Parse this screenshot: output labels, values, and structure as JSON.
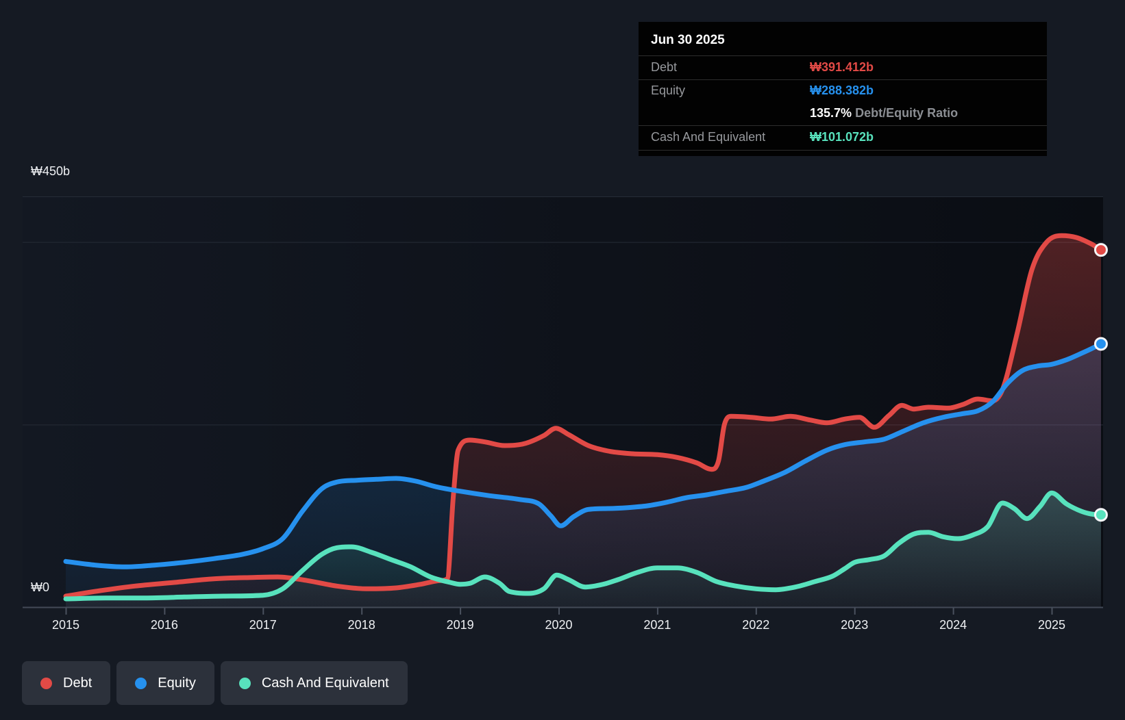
{
  "tooltip": {
    "date": "Jun 30 2025",
    "debt": {
      "label": "Debt",
      "value": "₩391.412b"
    },
    "equity": {
      "label": "Equity",
      "value": "₩288.382b"
    },
    "ratio": {
      "value": "135.7%",
      "label": " Debt/Equity Ratio"
    },
    "cash": {
      "label": "Cash And Equivalent",
      "value": "₩101.072b"
    }
  },
  "legend": {
    "items": [
      {
        "label": "Debt",
        "color": "#e24a46"
      },
      {
        "label": "Equity",
        "color": "#2691ee"
      },
      {
        "label": "Cash And Equivalent",
        "color": "#58e2bd"
      }
    ]
  },
  "colors": {
    "debt": "#e24a46",
    "equity": "#2691ee",
    "cash": "#58e2bd",
    "grid": "#262c37",
    "axis": "#434a57",
    "tick": "#4a515e",
    "plot_bg_left": "#131822",
    "plot_bg_right": "#0a0d13",
    "dot_ring": "#f5f7f9"
  },
  "chart_data": {
    "type": "area",
    "title": "Debt to Equity history (₩ billions)",
    "xlabel": "",
    "ylabel": "",
    "x_ticks": [
      2015,
      2016,
      2017,
      2018,
      2019,
      2020,
      2021,
      2022,
      2023,
      2024,
      2025
    ],
    "y_axis": {
      "max": 450,
      "gridline_values": [
        450,
        400,
        200
      ],
      "labels": [
        {
          "value": 450,
          "text": "₩450b"
        },
        {
          "value": 0,
          "text": "₩0"
        }
      ]
    },
    "legend_position": "bottom-left",
    "grid": true,
    "series": [
      {
        "name": "Debt",
        "color": "#e24a46",
        "fill_alpha_top": 0.32,
        "fill_alpha_bottom": 0.05,
        "points": [
          [
            2015.0,
            12
          ],
          [
            2015.35,
            18
          ],
          [
            2015.7,
            23
          ],
          [
            2016.1,
            27
          ],
          [
            2016.5,
            31
          ],
          [
            2016.9,
            32.5
          ],
          [
            2017.15,
            33
          ],
          [
            2017.45,
            29
          ],
          [
            2017.75,
            23
          ],
          [
            2018.05,
            20
          ],
          [
            2018.35,
            21
          ],
          [
            2018.6,
            25
          ],
          [
            2018.8,
            29
          ],
          [
            2018.87,
            31
          ],
          [
            2018.93,
            120
          ],
          [
            2018.98,
            172
          ],
          [
            2019.1,
            183
          ],
          [
            2019.25,
            181
          ],
          [
            2019.45,
            177
          ],
          [
            2019.65,
            179
          ],
          [
            2019.85,
            188
          ],
          [
            2019.97,
            196
          ],
          [
            2020.1,
            189
          ],
          [
            2020.3,
            177
          ],
          [
            2020.5,
            171
          ],
          [
            2020.75,
            168
          ],
          [
            2021.0,
            167
          ],
          [
            2021.2,
            164
          ],
          [
            2021.4,
            158
          ],
          [
            2021.55,
            151
          ],
          [
            2021.62,
            160
          ],
          [
            2021.68,
            200
          ],
          [
            2021.75,
            209
          ],
          [
            2021.95,
            208
          ],
          [
            2022.15,
            206
          ],
          [
            2022.35,
            209
          ],
          [
            2022.55,
            205
          ],
          [
            2022.72,
            202
          ],
          [
            2022.9,
            206
          ],
          [
            2023.05,
            208
          ],
          [
            2023.2,
            197
          ],
          [
            2023.35,
            210
          ],
          [
            2023.48,
            221
          ],
          [
            2023.6,
            217
          ],
          [
            2023.75,
            219
          ],
          [
            2023.95,
            218
          ],
          [
            2024.1,
            222
          ],
          [
            2024.25,
            228
          ],
          [
            2024.4,
            226
          ],
          [
            2024.5,
            238
          ],
          [
            2024.65,
            300
          ],
          [
            2024.8,
            370
          ],
          [
            2024.95,
            400
          ],
          [
            2025.1,
            407
          ],
          [
            2025.25,
            405
          ],
          [
            2025.4,
            398
          ],
          [
            2025.5,
            391.4
          ]
        ]
      },
      {
        "name": "Equity",
        "color": "#2691ee",
        "fill_alpha_top": 0.26,
        "fill_alpha_bottom": 0.05,
        "points": [
          [
            2015.0,
            50
          ],
          [
            2015.3,
            46
          ],
          [
            2015.6,
            44
          ],
          [
            2015.9,
            46
          ],
          [
            2016.2,
            49
          ],
          [
            2016.5,
            53
          ],
          [
            2016.8,
            58
          ],
          [
            2017.0,
            64
          ],
          [
            2017.2,
            75
          ],
          [
            2017.4,
            105
          ],
          [
            2017.6,
            130
          ],
          [
            2017.75,
            137
          ],
          [
            2017.95,
            139
          ],
          [
            2018.15,
            140
          ],
          [
            2018.35,
            141
          ],
          [
            2018.55,
            138
          ],
          [
            2018.75,
            132
          ],
          [
            2019.0,
            127
          ],
          [
            2019.3,
            122
          ],
          [
            2019.6,
            118
          ],
          [
            2019.8,
            113
          ],
          [
            2019.92,
            100
          ],
          [
            2020.02,
            89
          ],
          [
            2020.15,
            99
          ],
          [
            2020.3,
            107
          ],
          [
            2020.5,
            108
          ],
          [
            2020.7,
            109
          ],
          [
            2020.9,
            111
          ],
          [
            2021.1,
            115
          ],
          [
            2021.3,
            120
          ],
          [
            2021.5,
            123
          ],
          [
            2021.7,
            127
          ],
          [
            2021.9,
            131
          ],
          [
            2022.1,
            139
          ],
          [
            2022.3,
            148
          ],
          [
            2022.5,
            160
          ],
          [
            2022.72,
            172
          ],
          [
            2022.9,
            178
          ],
          [
            2023.1,
            181
          ],
          [
            2023.3,
            184
          ],
          [
            2023.5,
            193
          ],
          [
            2023.7,
            202
          ],
          [
            2023.9,
            208
          ],
          [
            2024.1,
            212
          ],
          [
            2024.25,
            215
          ],
          [
            2024.4,
            225
          ],
          [
            2024.55,
            245
          ],
          [
            2024.7,
            259
          ],
          [
            2024.85,
            264
          ],
          [
            2025.0,
            266
          ],
          [
            2025.15,
            271
          ],
          [
            2025.3,
            278
          ],
          [
            2025.4,
            283
          ],
          [
            2025.5,
            288.4
          ]
        ]
      },
      {
        "name": "Cash And Equivalent",
        "color": "#58e2bd",
        "fill_alpha_top": 0.2,
        "fill_alpha_bottom": 0.03,
        "points": [
          [
            2015.0,
            9
          ],
          [
            2015.4,
            10
          ],
          [
            2015.8,
            10
          ],
          [
            2016.2,
            11
          ],
          [
            2016.6,
            12
          ],
          [
            2017.0,
            13
          ],
          [
            2017.2,
            20
          ],
          [
            2017.4,
            40
          ],
          [
            2017.6,
            58
          ],
          [
            2017.75,
            65
          ],
          [
            2017.9,
            66
          ],
          [
            2018.1,
            60
          ],
          [
            2018.3,
            52
          ],
          [
            2018.5,
            44
          ],
          [
            2018.7,
            33
          ],
          [
            2018.9,
            27
          ],
          [
            2019.0,
            25
          ],
          [
            2019.1,
            26
          ],
          [
            2019.25,
            33
          ],
          [
            2019.4,
            26
          ],
          [
            2019.5,
            17
          ],
          [
            2019.7,
            15
          ],
          [
            2019.85,
            20
          ],
          [
            2019.98,
            35
          ],
          [
            2020.1,
            30
          ],
          [
            2020.27,
            22
          ],
          [
            2020.45,
            25
          ],
          [
            2020.6,
            30
          ],
          [
            2020.8,
            38
          ],
          [
            2021.0,
            43
          ],
          [
            2021.2,
            43
          ],
          [
            2021.4,
            38
          ],
          [
            2021.6,
            28
          ],
          [
            2021.8,
            23
          ],
          [
            2022.0,
            20
          ],
          [
            2022.2,
            19
          ],
          [
            2022.4,
            22
          ],
          [
            2022.6,
            28
          ],
          [
            2022.78,
            34
          ],
          [
            2022.9,
            42
          ],
          [
            2023.0,
            49
          ],
          [
            2023.15,
            52
          ],
          [
            2023.3,
            56
          ],
          [
            2023.45,
            70
          ],
          [
            2023.6,
            80
          ],
          [
            2023.75,
            82
          ],
          [
            2023.9,
            77
          ],
          [
            2024.05,
            75
          ],
          [
            2024.2,
            79
          ],
          [
            2024.35,
            88
          ],
          [
            2024.5,
            114
          ],
          [
            2024.62,
            108
          ],
          [
            2024.75,
            97
          ],
          [
            2024.88,
            110
          ],
          [
            2025.0,
            125
          ],
          [
            2025.15,
            113
          ],
          [
            2025.3,
            105
          ],
          [
            2025.4,
            102
          ],
          [
            2025.5,
            101.1
          ]
        ]
      }
    ],
    "end_labels": {
      "debt_end_value": 391.412,
      "equity_end_value": 288.382,
      "cash_end_value": 101.072
    }
  }
}
